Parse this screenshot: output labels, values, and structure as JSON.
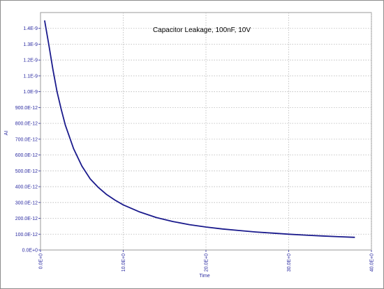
{
  "chart_data": {
    "type": "line",
    "title": "Capacitor Leakage, 100nF, 10V",
    "xlabel": "Time",
    "ylabel": "AI",
    "xlim": [
      0,
      40
    ],
    "ylim": [
      0,
      1.5e-09
    ],
    "grid": true,
    "x_ticks": [
      0,
      10,
      20,
      30,
      40
    ],
    "x_tick_labels": [
      "0.0E+0",
      "10.0E+0",
      "20.0E+0",
      "30.0E+0",
      "40.0E+0"
    ],
    "y_ticks": [
      0,
      1e-10,
      2e-10,
      3e-10,
      4e-10,
      5e-10,
      6e-10,
      7e-10,
      8e-10,
      9e-10,
      1e-09,
      1.1e-09,
      1.2e-09,
      1.3e-09,
      1.4e-09
    ],
    "y_tick_labels": [
      "0.0E+0",
      "100.0E-12",
      "200.0E-12",
      "300.0E-12",
      "400.0E-12",
      "500.0E-12",
      "600.0E-12",
      "700.0E-12",
      "800.0E-12",
      "900.0E-12",
      "1.0E-9",
      "1.1E-9",
      "1.2E-9",
      "1.3E-9",
      "1.4E-9"
    ],
    "series": [
      {
        "color": "#1a1a8c",
        "x": [
          0.5,
          1,
          1.5,
          2,
          2.5,
          3,
          4,
          5,
          6,
          7,
          8,
          9,
          10,
          12,
          14,
          16,
          18,
          20,
          22,
          24,
          26,
          28,
          30,
          32,
          34,
          36,
          38
        ],
        "y": [
          1.45e-09,
          1.3e-09,
          1.14e-09,
          1e-09,
          8.9e-10,
          7.9e-10,
          6.4e-10,
          5.3e-10,
          4.5e-10,
          3.95e-10,
          3.5e-10,
          3.15e-10,
          2.85e-10,
          2.4e-10,
          2.05e-10,
          1.8e-10,
          1.6e-10,
          1.45e-10,
          1.33e-10,
          1.23e-10,
          1.14e-10,
          1.07e-10,
          1e-10,
          9.4e-11,
          8.9e-11,
          8.4e-11,
          8e-11
        ]
      }
    ]
  }
}
